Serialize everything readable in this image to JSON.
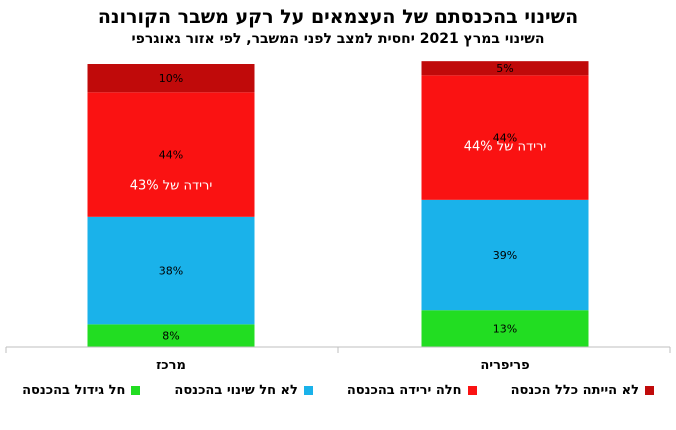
{
  "chart_data": {
    "type": "bar",
    "stacked": true,
    "title": "השינוי בהכנסתם של העצמאים על רקע משבר הקורונה",
    "subtitle": "השינוי במרץ 2021 יחסית למצב לפני המשבר, לפי אזור גאוגרפי",
    "categories": [
      "מרכז",
      "פריפריה"
    ],
    "series": [
      {
        "name": "חל גידול בהכנסה",
        "color": "#22dd22",
        "values": [
          8,
          13
        ],
        "labels": [
          "8%",
          "13%"
        ]
      },
      {
        "name": "לא חל שינוי בהכנסה",
        "color": "#1ab2ea",
        "values": [
          38,
          39
        ],
        "labels": [
          "38%",
          "39%"
        ]
      },
      {
        "name": "חלה ירידה בהכנסה",
        "color": "#fa1212",
        "values": [
          44,
          44
        ],
        "labels": [
          "44%",
          "44%"
        ]
      },
      {
        "name": "לא הייתה כלל הכנסה",
        "color": "#c00a0a",
        "values": [
          10,
          5
        ],
        "labels": [
          "10%",
          "5%"
        ]
      }
    ],
    "annotations": [
      "ירידה של 43%",
      "ירידה של 44%"
    ],
    "ylim": [
      0,
      100
    ],
    "legend_position": "bottom",
    "grid": false
  }
}
